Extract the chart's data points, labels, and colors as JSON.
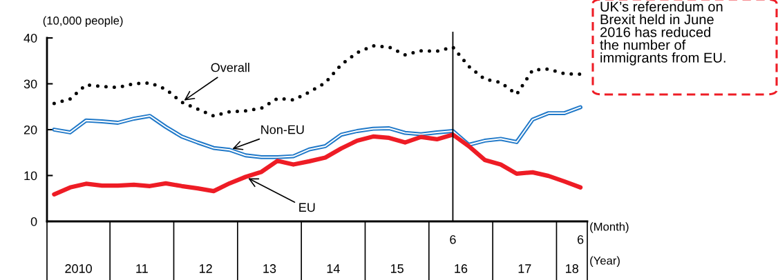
{
  "chart_data": {
    "type": "line",
    "ylabel": "(10,000 people)",
    "xlabel": "(Month)",
    "categories": [
      null,
      null,
      null,
      null,
      null,
      null,
      null,
      null,
      null,
      null,
      null,
      null,
      null,
      null,
      null,
      null,
      null,
      null,
      null,
      null,
      null,
      null,
      null,
      null,
      null,
      "6",
      null,
      null,
      null,
      null,
      null,
      null,
      null,
      "6"
    ],
    "series": [
      {
        "name": "Overall",
        "color": "#000000",
        "line_style": "dotted",
        "values": [
          25.7,
          26.7,
          29.8,
          29.4,
          29.2,
          30.0,
          30.2,
          28.8,
          26.0,
          24.5,
          23.0,
          23.9,
          24.1,
          24.7,
          26.8,
          26.5,
          28.2,
          30.2,
          34.2,
          36.8,
          38.3,
          38.0,
          36.3,
          37.2,
          37.1,
          38.0,
          33.8,
          31.0,
          30.3,
          27.7,
          33.0,
          33.2,
          32.2,
          32.1
        ]
      },
      {
        "name": "Non-EU",
        "color": "#1f78c8",
        "line_style": "solid",
        "values": [
          20.0,
          19.4,
          22.0,
          21.8,
          21.5,
          22.4,
          23.0,
          20.6,
          18.5,
          17.2,
          16.0,
          15.6,
          14.4,
          14.0,
          14.0,
          14.2,
          15.7,
          16.4,
          18.9,
          19.7,
          20.2,
          20.3,
          19.3,
          19.0,
          19.4,
          19.7,
          16.7,
          17.6,
          18.0,
          17.3,
          22.2,
          23.6,
          23.6,
          24.9
        ]
      },
      {
        "name": "EU",
        "color": "#ee1c25",
        "line_style": "solid",
        "values": [
          5.9,
          7.4,
          8.2,
          7.8,
          7.8,
          8.0,
          7.7,
          8.3,
          7.7,
          7.2,
          6.6,
          8.3,
          9.7,
          10.8,
          13.2,
          12.4,
          13.1,
          13.9,
          15.9,
          17.6,
          18.5,
          18.2,
          17.2,
          18.4,
          17.9,
          18.9,
          16.4,
          13.4,
          12.4,
          10.4,
          10.7,
          9.9,
          8.7,
          7.4
        ]
      }
    ],
    "ylim": [
      0,
      40
    ],
    "yticks": [
      0,
      10,
      20,
      30,
      40
    ],
    "ref_lines": [
      {
        "axis": "x",
        "value": "6",
        "color": "#000000",
        "line_style": "solid"
      }
    ],
    "annotations": [
      "UK’s referendum on\nBrexit held in June\n2016 has reduced\nthe number of\nimmigrants from EU.",
      "2010",
      "11",
      "12",
      "13",
      "14",
      "15",
      "16",
      "17",
      "18",
      "(Year)"
    ],
    "grid": false,
    "legend": false,
    "marker": "none"
  }
}
